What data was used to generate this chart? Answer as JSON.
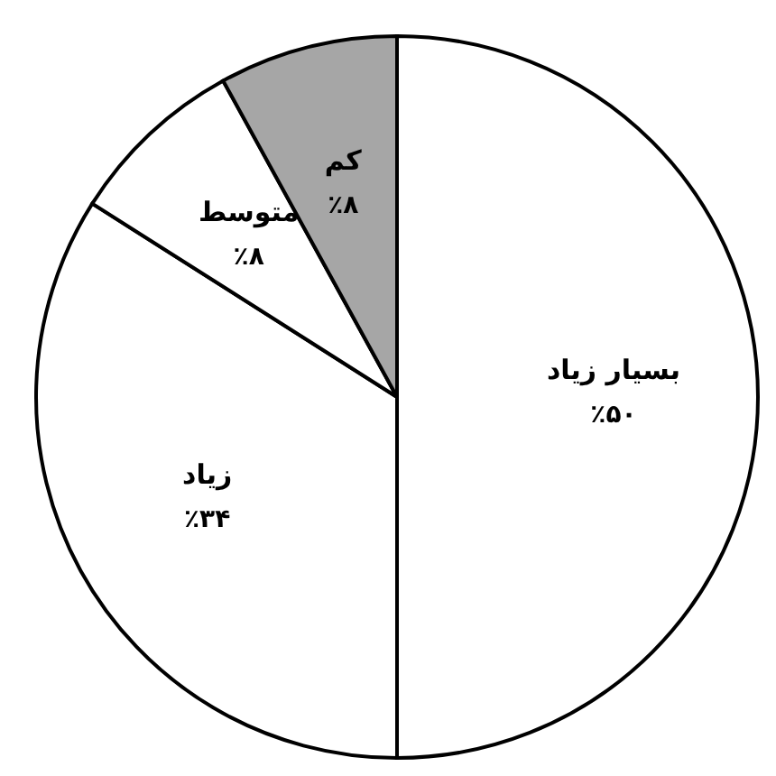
{
  "chart_data": {
    "type": "pie",
    "categories": [
      "بسیار زیاد",
      "زیاد",
      "متوسط",
      "کم"
    ],
    "values": [
      50,
      34,
      8,
      8
    ],
    "colors": [
      "#ffffff",
      "#ffffff",
      "#ffffff",
      "#a6a6a6"
    ],
    "value_labels": [
      "٪۵۰",
      "٪۳۴",
      "٪۸",
      "٪۸"
    ]
  }
}
